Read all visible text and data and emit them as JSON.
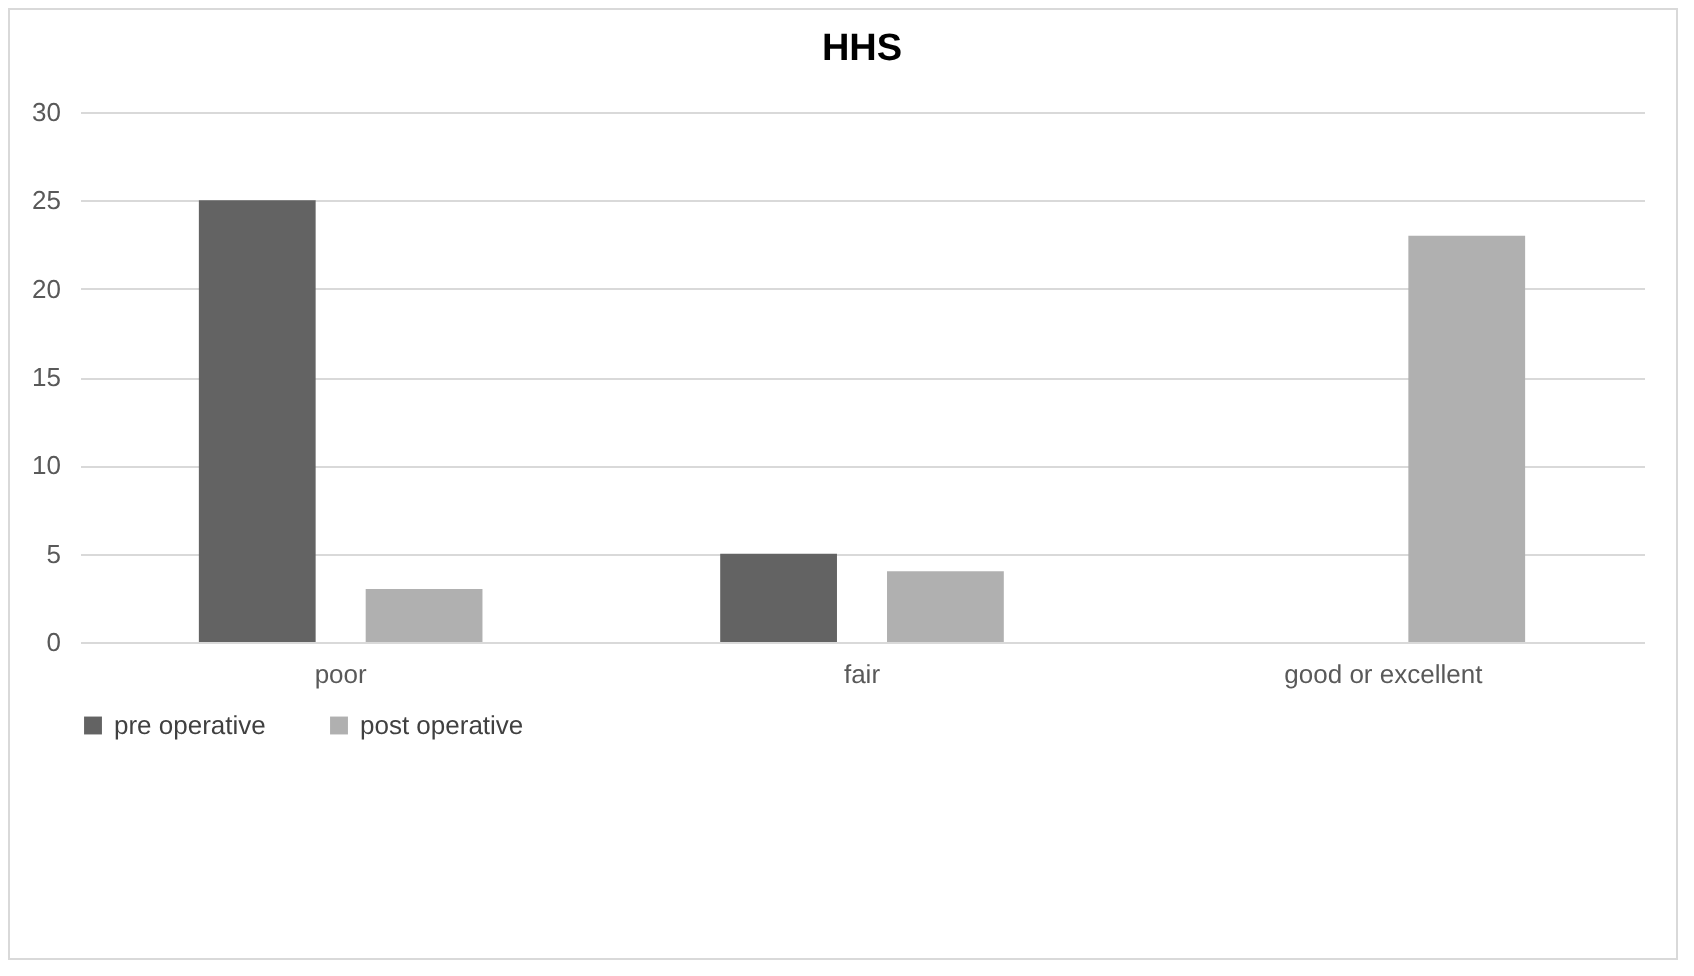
{
  "chart_data": {
    "type": "bar",
    "title": "HHS",
    "categories": [
      "poor",
      "fair",
      "good or excellent"
    ],
    "series": [
      {
        "name": "pre operative",
        "color": "#636363",
        "values": [
          25,
          5,
          0
        ]
      },
      {
        "name": "post operative",
        "color": "#b0b0b0",
        "values": [
          3,
          4,
          23
        ]
      }
    ],
    "ylim": [
      0,
      30
    ],
    "yticks": [
      0,
      5,
      10,
      15,
      20,
      25,
      30
    ],
    "grid": "y",
    "legend": "bottom"
  }
}
